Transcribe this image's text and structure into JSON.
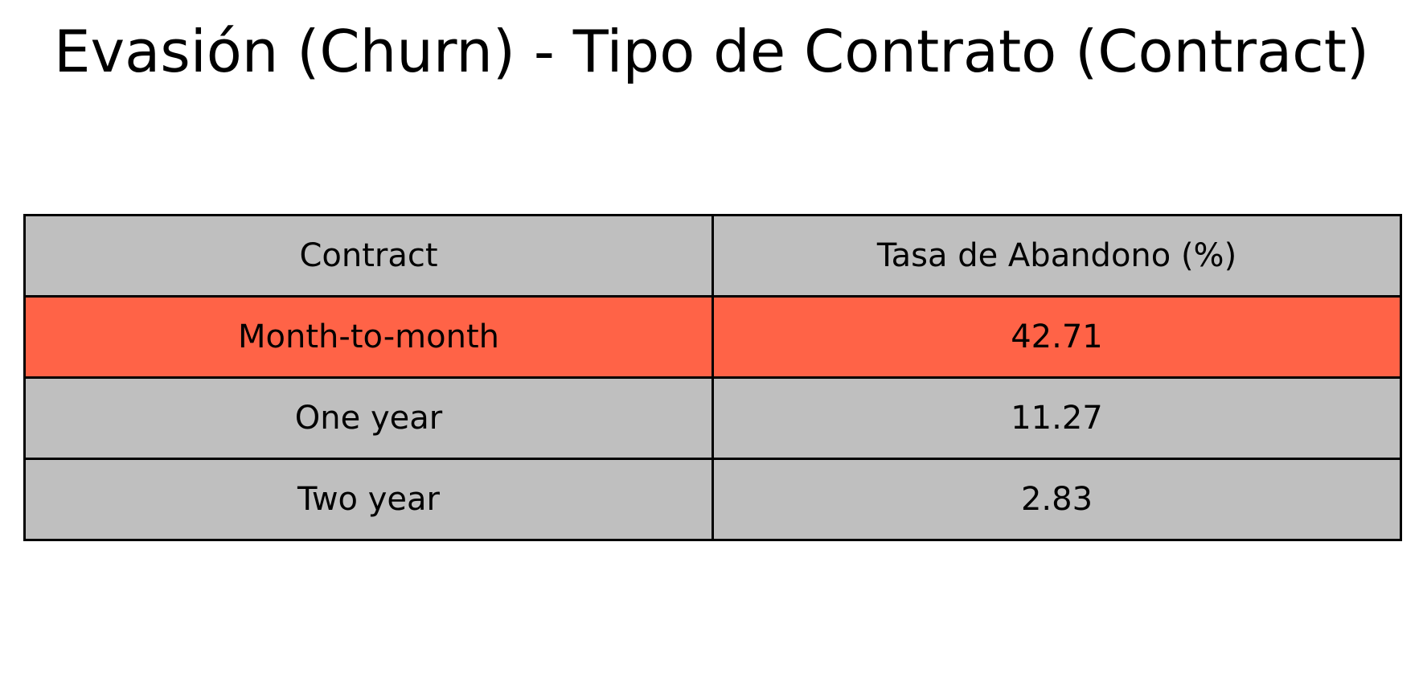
{
  "colors": {
    "highlight": "#ff6347",
    "cell": "#bfbfbf",
    "border": "#000000"
  },
  "chart_data": {
    "type": "table",
    "title": "Evasión (Churn) - Tipo de Contrato (Contract)",
    "columns": [
      "Contract",
      "Tasa de Abandono (%)"
    ],
    "rows": [
      [
        "Month-to-month",
        "42.71"
      ],
      [
        "One year",
        "11.27"
      ],
      [
        "Two year",
        "2.83"
      ]
    ],
    "highlighted_rows": [
      0
    ]
  }
}
